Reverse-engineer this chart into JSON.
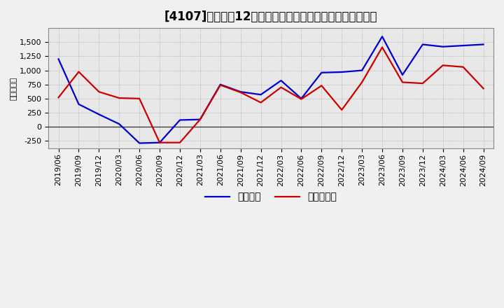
{
  "title": "[4107]　利益の12か月移動合計の対前年同期増減額の推移",
  "ylabel": "（百万円）",
  "x_labels": [
    "2019/06",
    "2019/09",
    "2019/12",
    "2020/03",
    "2020/06",
    "2020/09",
    "2020/12",
    "2021/03",
    "2021/06",
    "2021/09",
    "2021/12",
    "2022/03",
    "2022/06",
    "2022/09",
    "2022/12",
    "2023/03",
    "2023/06",
    "2023/09",
    "2023/12",
    "2024/03",
    "2024/06",
    "2024/09"
  ],
  "keijo_rieki": [
    1200,
    400,
    220,
    50,
    -290,
    -280,
    120,
    130,
    750,
    620,
    570,
    820,
    500,
    960,
    970,
    1000,
    1600,
    920,
    1460,
    1420,
    1440,
    1460
  ],
  "touki_junrieki": [
    520,
    975,
    620,
    510,
    500,
    -280,
    -280,
    130,
    740,
    610,
    430,
    700,
    490,
    730,
    300,
    790,
    1410,
    790,
    770,
    1090,
    1060,
    680
  ],
  "line_color_keijo": "#0000cc",
  "line_color_touki": "#cc0000",
  "legend_keijo": "経常利益",
  "legend_touki": "当期純利益",
  "ylim": [
    -380,
    1750
  ],
  "yticks": [
    -250,
    0,
    250,
    500,
    750,
    1000,
    1250,
    1500
  ],
  "bg_color": "#f0f0f0",
  "plot_bg_color": "#e8e8e8",
  "grid_color": "#999999",
  "zero_line_color": "#333333",
  "title_fontsize": 12,
  "axis_fontsize": 8,
  "legend_fontsize": 10
}
